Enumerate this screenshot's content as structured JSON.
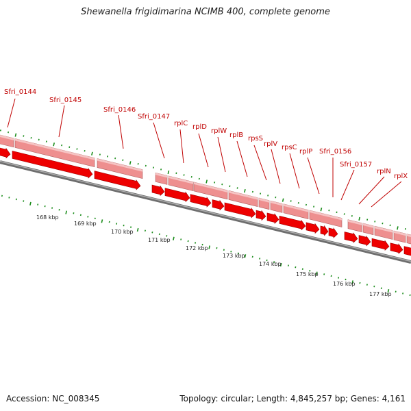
{
  "title": "Shewanella frigidimarina NCIMB 400, complete genome",
  "footer": {
    "accession": "Accession: NC_008345",
    "summary": "Topology: circular; Length: 4,845,257 bp; Genes: 4,161"
  },
  "kbp_labels": [
    "168 kbp",
    "169 kbp",
    "170 kbp",
    "171 kbp",
    "172 kbp",
    "173 kbp",
    "174 kbp",
    "175 kbp",
    "176 kbp",
    "177 kbp"
  ],
  "gene_labels": [
    "Sfri_0144",
    "Sfri_0145",
    "Sfri_0146",
    "Sfri_0147",
    "rplC",
    "rplD",
    "rplW",
    "rplB",
    "rpsS",
    "rplV",
    "rpsC",
    "rplP",
    "Sfri_0156",
    "Sfri_0157",
    "rplN",
    "rplX"
  ],
  "colors": {
    "gene_arrow": "#ee0000",
    "gene_band": "#ee8f8f",
    "backbone": "#8c8c8c",
    "tick": "#1a8c1a",
    "label": "#c00000"
  }
}
